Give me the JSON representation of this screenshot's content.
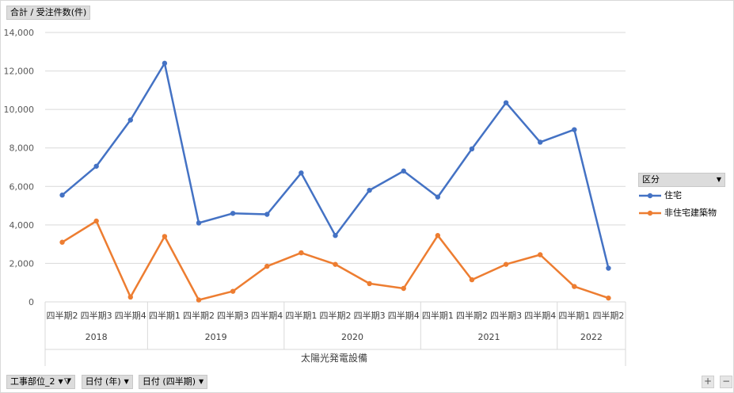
{
  "value_field": {
    "label": "合計 / 受注件数(件)"
  },
  "bottom_fields": [
    {
      "label": "工事部位_2",
      "filtered": true
    },
    {
      "label": "日付 (年)",
      "filtered": false
    },
    {
      "label": "日付 (四半期)",
      "filtered": false
    }
  ],
  "legend": {
    "title": "区分",
    "items": [
      {
        "name": "住宅",
        "color": "#4472C4"
      },
      {
        "name": "非住宅建築物",
        "color": "#ED7D31"
      }
    ]
  },
  "zoom": {
    "plus": "+",
    "minus": "−"
  },
  "chart_data": {
    "type": "line",
    "category_group_label": "太陽光発電設備",
    "categories": [
      "四半期2",
      "四半期3",
      "四半期4",
      "四半期1",
      "四半期2",
      "四半期3",
      "四半期4",
      "四半期1",
      "四半期2",
      "四半期3",
      "四半期4",
      "四半期1",
      "四半期2",
      "四半期3",
      "四半期4",
      "四半期1",
      "四半期2"
    ],
    "year_groups": [
      {
        "year": "2018",
        "count": 3
      },
      {
        "year": "2019",
        "count": 4
      },
      {
        "year": "2020",
        "count": 4
      },
      {
        "year": "2021",
        "count": 4
      },
      {
        "year": "2022",
        "count": 2
      }
    ],
    "series": [
      {
        "name": "住宅",
        "color": "#4472C4",
        "values": [
          5550,
          7050,
          9450,
          12400,
          4100,
          4600,
          4550,
          6700,
          3450,
          5800,
          6800,
          5450,
          7950,
          10350,
          8300,
          8950,
          1750
        ]
      },
      {
        "name": "非住宅建築物",
        "color": "#ED7D31",
        "values": [
          3100,
          4200,
          250,
          3400,
          100,
          550,
          1850,
          2550,
          1950,
          950,
          700,
          3450,
          1150,
          1950,
          2450,
          800,
          200
        ]
      }
    ],
    "y_ticks": [
      "0",
      "2,000",
      "4,000",
      "6,000",
      "8,000",
      "10,000",
      "12,000",
      "14,000"
    ],
    "ylim": [
      0,
      14000
    ],
    "grid": true,
    "legend_position": "right"
  }
}
